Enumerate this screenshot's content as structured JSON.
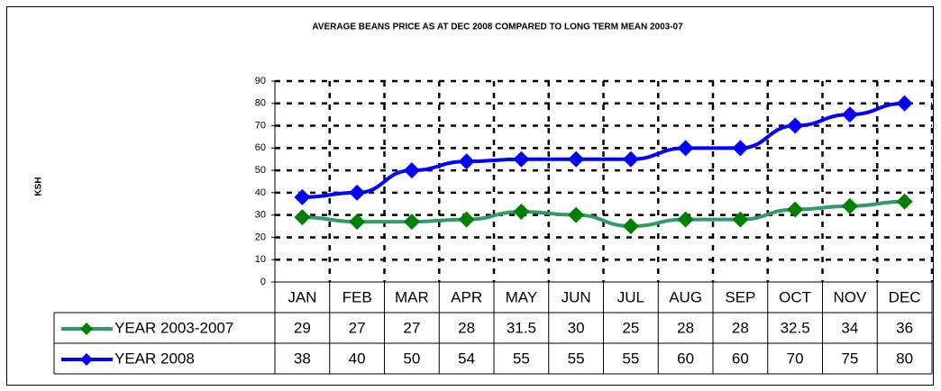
{
  "chart_data": {
    "type": "line",
    "title": "AVERAGE BEANS PRICE AS AT DEC 2008 COMPARED TO LONG TERM MEAN 2003-07",
    "y_label": "KSH",
    "categories": [
      "JAN",
      "FEB",
      "MAR",
      "APR",
      "MAY",
      "JUN",
      "JUL",
      "AUG",
      "SEP",
      "OCT",
      "NOV",
      "DEC"
    ],
    "series": [
      {
        "name": "YEAR 2003-2007",
        "color": "#339966",
        "marker_color": "#008000",
        "values": [
          29,
          27,
          27,
          28,
          31.5,
          30,
          25,
          28,
          28,
          32.5,
          34,
          36
        ]
      },
      {
        "name": "YEAR 2008",
        "color": "#0000ff",
        "marker_color": "#0000ff",
        "values": [
          38,
          40,
          50,
          54,
          55,
          55,
          55,
          60,
          60,
          70,
          75,
          80
        ]
      }
    ],
    "ylim": [
      0,
      90
    ],
    "yticks": [
      0,
      10,
      20,
      30,
      40,
      50,
      60,
      70,
      80,
      90
    ],
    "grid": true
  }
}
